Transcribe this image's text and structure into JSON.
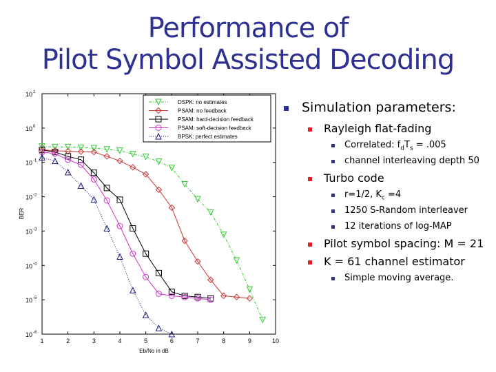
{
  "title": {
    "line1": "Performance of",
    "line2": "Pilot Symbol Assisted Decoding"
  },
  "bullets": {
    "main": "Simulation parameters:",
    "rayleigh": "Rayleigh flat-fading",
    "correlated_prefix": "Correlated: f",
    "correlated_sub1": "d",
    "correlated_mid": "T",
    "correlated_sub2": "s",
    "correlated_suffix": " = .005",
    "interleaving": "channel interleaving depth 50",
    "turbo": "Turbo code",
    "rate_prefix": "r=1/2, K",
    "rate_sub": "c",
    "rate_suffix": " =4",
    "interleaver": "1250 S-Random interleaver",
    "iterations": "12 iterations of log-MAP",
    "pilot": "Pilot symbol spacing: M = 21",
    "estimator": "K = 61 channel estimator",
    "moving_avg": "Simple moving average."
  },
  "chart_data": {
    "type": "line",
    "title": "",
    "xlabel": "Eb/No in dB",
    "ylabel": "BER",
    "xlim": [
      1,
      10
    ],
    "ylim": [
      1e-06,
      10
    ],
    "yscale": "log",
    "xticks": [
      "1",
      "2",
      "3",
      "4",
      "5",
      "6",
      "7",
      "8",
      "9",
      "10"
    ],
    "yticks": [
      "10^1",
      "10^0",
      "10^-1",
      "10^-2",
      "10^-3",
      "10^-4",
      "10^-5",
      "10^-6"
    ],
    "grid": false,
    "legend_position": "upper right",
    "series": [
      {
        "name": "DSPK: no estimates",
        "color": "#33cc33",
        "marker": "triangle-down",
        "linestyle": "dashdot",
        "x": [
          1,
          1.5,
          2,
          2.5,
          3,
          3.5,
          4,
          4.5,
          5,
          5.5,
          6,
          6.5,
          7,
          7.5,
          8,
          8.5,
          9,
          9.5
        ],
        "y": [
          0.29,
          0.28,
          0.28,
          0.27,
          0.26,
          0.24,
          0.22,
          0.175,
          0.145,
          0.105,
          0.069,
          0.023,
          0.0085,
          0.0035,
          0.00078,
          0.00014,
          2e-05,
          2.6e-06
        ]
      },
      {
        "name": "PSAM: no feedback",
        "color": "#cc3333",
        "marker": "diamond",
        "linestyle": "solid",
        "x": [
          1,
          1.5,
          2,
          2.5,
          3,
          3.5,
          4,
          4.5,
          5,
          5.5,
          6,
          6.5,
          7,
          7.5,
          8,
          8.5,
          9
        ],
        "y": [
          0.23,
          0.22,
          0.21,
          0.205,
          0.2,
          0.15,
          0.11,
          0.072,
          0.045,
          0.016,
          0.0048,
          0.00052,
          0.00013,
          3.8e-05,
          1.3e-05,
          1.2e-05,
          1.1e-05
        ]
      },
      {
        "name": "PSAM: hard-decision feedback",
        "color": "#000000",
        "marker": "square",
        "linestyle": "solid",
        "x": [
          1,
          1.5,
          2,
          2.5,
          3,
          3.5,
          4,
          4.5,
          5,
          5.5,
          6,
          6.5,
          7,
          7.5
        ],
        "y": [
          0.23,
          0.2,
          0.15,
          0.12,
          0.05,
          0.018,
          0.0082,
          0.0012,
          0.00022,
          6e-05,
          1.7e-05,
          1.3e-05,
          1.2e-05,
          1.1e-05
        ]
      },
      {
        "name": "PSAM: soft-decision feedback",
        "color": "#cc33cc",
        "marker": "circle",
        "linestyle": "solid",
        "x": [
          1,
          1.5,
          2,
          2.5,
          3,
          3.5,
          4,
          4.5,
          5,
          5.5,
          6,
          6.5,
          7,
          7.5
        ],
        "y": [
          0.2,
          0.18,
          0.12,
          0.085,
          0.032,
          0.0078,
          0.0014,
          0.00022,
          4.6e-05,
          1.5e-05,
          1.3e-05,
          1.2e-05,
          1.1e-05,
          1e-05
        ]
      },
      {
        "name": "BPSK: perfect estimates",
        "color": "#1a1a80",
        "marker": "triangle-up",
        "linestyle": "dotted",
        "x": [
          1,
          1.5,
          2,
          2.5,
          3,
          3.5,
          4,
          4.5,
          5,
          5.5,
          6
        ],
        "y": [
          0.14,
          0.11,
          0.052,
          0.021,
          0.0083,
          0.0012,
          0.00018,
          1.9e-05,
          3.6e-06,
          1.5e-06,
          1e-06
        ]
      }
    ]
  }
}
